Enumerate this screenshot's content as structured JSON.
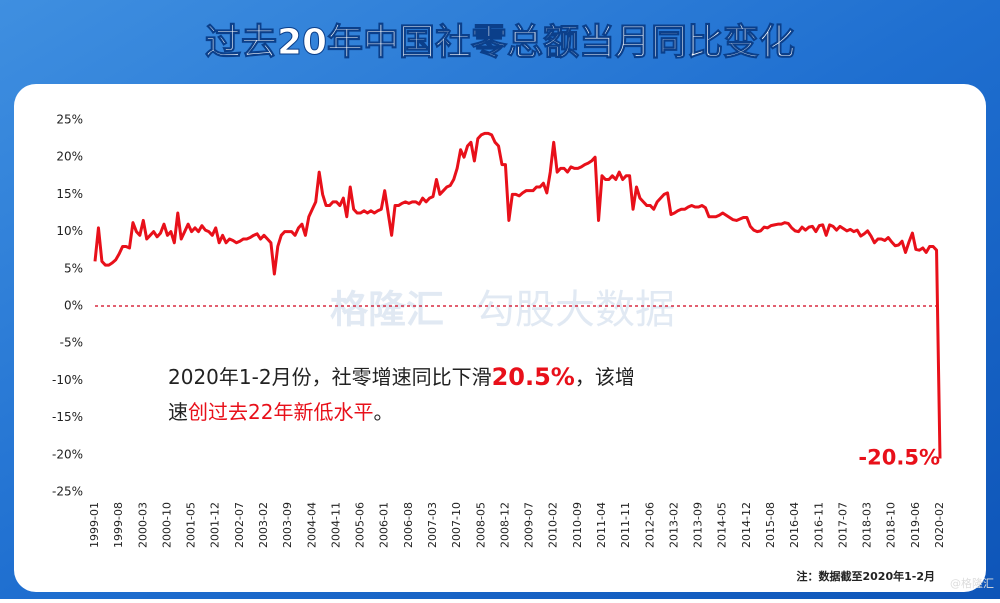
{
  "chart_data": {
    "type": "line",
    "title": "过去20年中国社零总额当月同比变化",
    "categories": [
      "1999-01",
      null,
      null,
      null,
      null,
      null,
      null,
      "1999-08",
      null,
      null,
      null,
      null,
      null,
      null,
      "2000-03",
      null,
      null,
      null,
      null,
      null,
      null,
      "2000-10",
      null,
      null,
      null,
      null,
      null,
      null,
      "2001-05",
      null,
      null,
      null,
      null,
      null,
      null,
      "2001-12",
      null,
      null,
      null,
      null,
      null,
      null,
      "2002-07",
      null,
      null,
      null,
      null,
      null,
      null,
      "2003-02",
      null,
      null,
      null,
      null,
      null,
      null,
      "2003-09",
      null,
      null,
      null,
      null,
      null,
      null,
      "2004-04",
      null,
      null,
      null,
      null,
      null,
      null,
      "2004-11",
      null,
      null,
      null,
      null,
      null,
      null,
      "2005-06",
      null,
      null,
      null,
      null,
      null,
      null,
      "2006-01",
      null,
      null,
      null,
      null,
      null,
      null,
      "2006-08",
      null,
      null,
      null,
      null,
      null,
      null,
      "2007-03",
      null,
      null,
      null,
      null,
      null,
      null,
      "2007-10",
      null,
      null,
      null,
      null,
      null,
      null,
      "2008-05",
      null,
      null,
      null,
      null,
      null,
      null,
      "2008-12",
      null,
      null,
      null,
      null,
      null,
      null,
      "2009-07",
      null,
      null,
      null,
      null,
      null,
      null,
      "2010-02",
      null,
      null,
      null,
      null,
      null,
      null,
      "2010-09",
      null,
      null,
      null,
      null,
      null,
      null,
      "2011-04",
      null,
      null,
      null,
      null,
      null,
      null,
      "2011-11",
      null,
      null,
      null,
      null,
      null,
      null,
      "2012-06",
      null,
      null,
      null,
      null,
      null,
      null,
      "2013-02",
      null,
      null,
      null,
      null,
      null,
      null,
      "2013-09",
      null,
      null,
      null,
      null,
      null,
      null,
      "2014-05",
      null,
      null,
      null,
      null,
      null,
      null,
      "2014-12",
      null,
      null,
      null,
      null,
      null,
      null,
      "2015-08",
      null,
      null,
      null,
      null,
      null,
      null,
      "2016-04",
      null,
      null,
      null,
      null,
      null,
      null,
      "2016-11",
      null,
      null,
      null,
      null,
      null,
      null,
      "2017-07",
      null,
      null,
      null,
      null,
      null,
      null,
      "2018-03",
      null,
      null,
      null,
      null,
      null,
      null,
      "2018-10",
      null,
      null,
      null,
      null,
      null,
      null,
      "2019-06",
      null,
      null,
      null,
      null,
      null,
      null,
      "2020-02"
    ],
    "values": [
      6,
      10.5,
      6,
      5.5,
      5.5,
      5.8,
      6.2,
      7,
      8,
      8,
      7.8,
      11.2,
      10,
      9.5,
      11.5,
      9,
      9.5,
      10,
      9.3,
      9.8,
      11,
      9.5,
      10,
      8.5,
      12.5,
      9,
      10,
      11,
      10,
      10.5,
      10,
      10.8,
      10.2,
      10,
      9.5,
      10.5,
      8.5,
      9.5,
      8.5,
      9,
      8.8,
      8.5,
      8.7,
      9,
      9,
      9.2,
      9.5,
      9.7,
      9,
      9.5,
      9,
      8.5,
      4.3,
      8,
      9.5,
      10,
      10,
      10,
      9.5,
      10.5,
      11,
      9.5,
      12,
      13,
      14,
      18,
      15,
      13.5,
      13.5,
      14,
      14,
      13.5,
      14.5,
      12,
      16,
      13,
      12.5,
      12.5,
      12.8,
      12.5,
      12.8,
      12.5,
      12.8,
      13,
      15.5,
      12.5,
      9.5,
      13.5,
      13.5,
      13.8,
      14,
      13.8,
      14,
      14,
      13.7,
      14.5,
      14,
      14.5,
      14.7,
      17,
      15,
      15.5,
      16,
      16.2,
      17,
      18.5,
      21,
      20,
      21.5,
      22,
      19.5,
      22.5,
      23,
      23.2,
      23.2,
      23,
      22,
      21.5,
      19,
      19,
      11.5,
      15,
      15,
      14.8,
      15.2,
      15.5,
      15.5,
      15.5,
      16,
      16,
      16.5,
      15.2,
      18,
      22,
      18,
      18.5,
      18.5,
      18,
      18.7,
      18.5,
      18.5,
      18.7,
      19,
      19.2,
      19.5,
      20,
      11.5,
      17.5,
      17,
      17,
      17.5,
      17,
      18,
      17,
      17.5,
      17.5,
      13,
      16,
      14.5,
      14,
      13.5,
      13.5,
      13,
      14,
      14.5,
      15,
      15.2,
      12.3,
      12.5,
      12.8,
      13,
      13,
      13.3,
      13.5,
      13.3,
      13.3,
      13.5,
      13.2,
      12,
      12,
      12,
      12.2,
      12.5,
      12.2,
      11.9,
      11.6,
      11.5,
      11.7,
      11.9,
      11.9,
      10.7,
      10.2,
      10,
      10.1,
      10.6,
      10.5,
      10.8,
      10.9,
      11,
      11,
      11.2,
      11.1,
      10.5,
      10.1,
      10,
      10.6,
      10.2,
      10.6,
      10.7,
      10,
      10.8,
      10.9,
      9.5,
      10.9,
      10.7,
      10.2,
      10.7,
      10.4,
      10.1,
      10.3,
      10,
      10.2,
      9.4,
      9.7,
      10.1,
      9.4,
      8.5,
      9,
      9,
      8.8,
      9.2,
      8.6,
      8.1,
      8.2,
      8.7,
      7.2,
      8.6,
      9.8,
      7.6,
      7.5,
      7.8,
      7.2,
      8,
      8,
      7.5,
      -20.5
    ],
    "color": "#e8101a",
    "ylim": [
      -25,
      25
    ],
    "yticks": [
      {
        "value": -25,
        "label": "-25%"
      },
      {
        "value": -20,
        "label": "-20%"
      },
      {
        "value": -15,
        "label": "-15%"
      },
      {
        "value": -10,
        "label": "-10%"
      },
      {
        "value": -5,
        "label": "-5%"
      },
      {
        "value": 0,
        "label": "0%"
      },
      {
        "value": 5,
        "label": "5%"
      },
      {
        "value": 10,
        "label": "10%"
      },
      {
        "value": 15,
        "label": "15%"
      },
      {
        "value": 20,
        "label": "20%"
      },
      {
        "value": 25,
        "label": "25%"
      }
    ],
    "zero_line_color": "#d0021b",
    "last_point_label": "-20.5%",
    "annotation": [
      [
        "2020年1-2月份，社零增速同比下滑",
        "20.5%",
        "，该增"
      ],
      [
        "速",
        "创过去22年新低水平",
        "。"
      ]
    ],
    "note": "注：数据截至2020年1-2月",
    "watermark": [
      "格隆汇",
      "勾股大数据"
    ],
    "credit": "@格隆汇"
  }
}
